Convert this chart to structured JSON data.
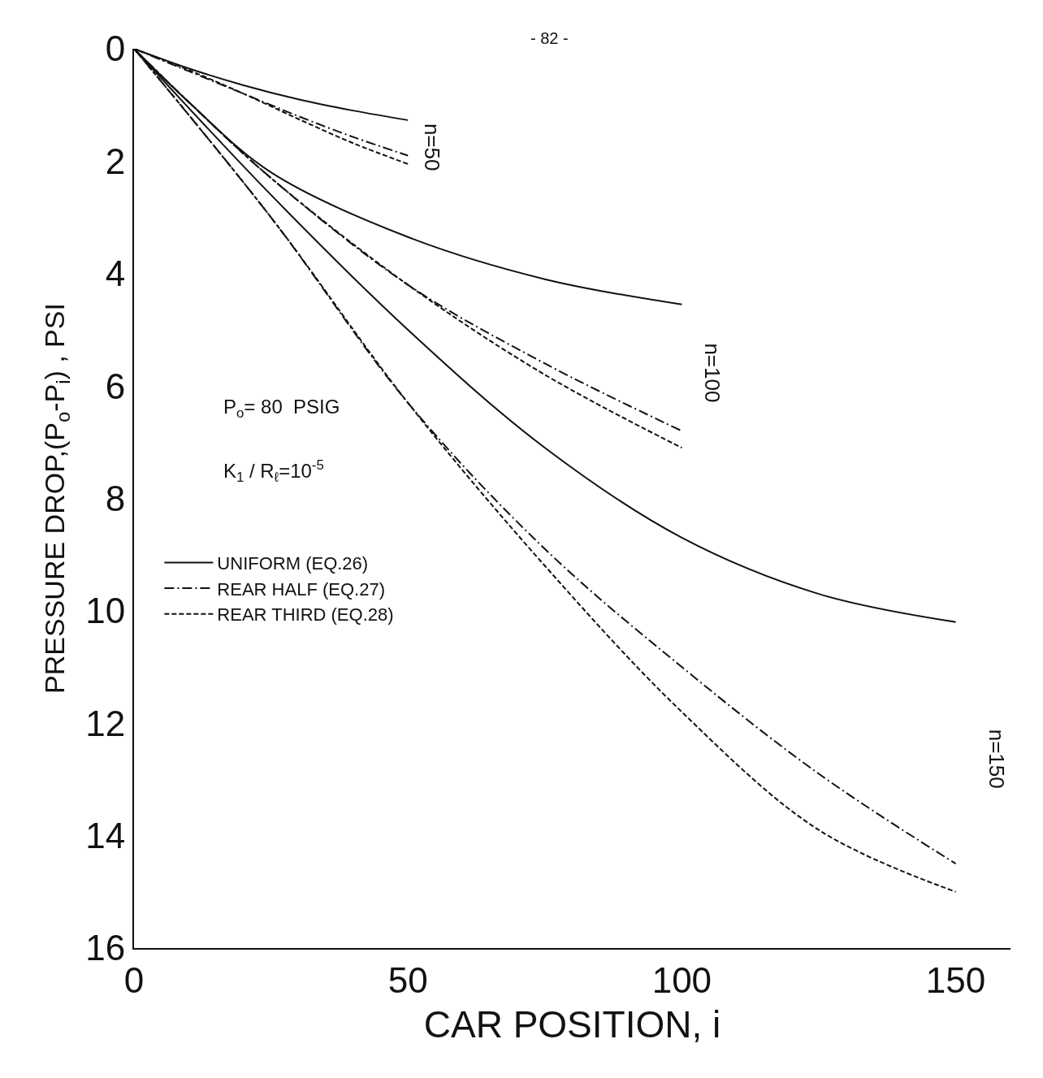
{
  "chart_data": {
    "type": "line",
    "xlabel": "CAR POSITION, i",
    "ylabel": "PRESSURE DROP,(P$_{o}$-P$_{i}$) , PSI",
    "xlim": [
      0,
      160
    ],
    "ylim": [
      16,
      0
    ],
    "xticks": [
      0,
      50,
      100,
      150
    ],
    "yticks": [
      0,
      2,
      4,
      6,
      8,
      10,
      12,
      14,
      16
    ],
    "legend": "left",
    "marker": "none",
    "series": [
      {
        "color": "#111111",
        "line_style": "solid",
        "x": [
          0,
          10,
          20,
          30,
          40,
          50
        ],
        "values": [
          0,
          0.35,
          0.65,
          0.9,
          1.1,
          1.27
        ]
      },
      {
        "color": "#111111",
        "line_style": "dashdot",
        "x": [
          0,
          10,
          20,
          30,
          40,
          50
        ],
        "values": [
          0,
          0.4,
          0.8,
          1.2,
          1.57,
          1.9
        ]
      },
      {
        "color": "#111111",
        "line_style": "dashed",
        "x": [
          0,
          10,
          20,
          30,
          40,
          50
        ],
        "values": [
          0,
          0.38,
          0.8,
          1.25,
          1.68,
          2.05
        ]
      },
      {
        "color": "#111111",
        "line_style": "solid",
        "x": [
          0,
          10,
          25,
          50,
          75,
          100
        ],
        "values": [
          0,
          0.95,
          2.2,
          3.35,
          4.1,
          4.55
        ]
      },
      {
        "color": "#111111",
        "line_style": "dashdot",
        "x": [
          0,
          10,
          25,
          50,
          75,
          100
        ],
        "values": [
          0,
          0.95,
          2.3,
          4.2,
          5.6,
          6.8
        ]
      },
      {
        "color": "#111111",
        "line_style": "dashed",
        "x": [
          0,
          10,
          25,
          50,
          75,
          100
        ],
        "values": [
          0,
          0.95,
          2.3,
          4.2,
          5.8,
          7.1
        ]
      },
      {
        "name": "UNIFORM (EQ.26)",
        "color": "#111111",
        "line_style": "solid",
        "x": [
          0,
          25,
          50,
          75,
          100,
          125,
          150
        ],
        "values": [
          0,
          2.6,
          5.0,
          7.1,
          8.7,
          9.7,
          10.2
        ]
      },
      {
        "name": "REAR HALF (EQ.27)",
        "color": "#111111",
        "line_style": "dashdot",
        "x": [
          0,
          25,
          50,
          75,
          100,
          125,
          150
        ],
        "values": [
          0,
          3.0,
          6.3,
          8.9,
          11.0,
          12.9,
          14.5
        ]
      },
      {
        "name": "REAR THIRD (EQ.28)",
        "color": "#111111",
        "line_style": "dashed",
        "x": [
          0,
          25,
          50,
          75,
          100,
          125,
          150
        ],
        "values": [
          0,
          3.0,
          6.3,
          9.2,
          11.8,
          13.9,
          15.0
        ]
      }
    ],
    "annotations": [
      "- 82 -",
      "n=50",
      "n=100",
      "n=150",
      "P$_{o}$= 80  PSIG",
      "K$_{1}$ / R$_{ℓ}$=10$^{-5}$"
    ]
  }
}
